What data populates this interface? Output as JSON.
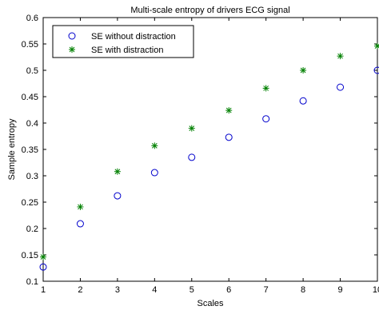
{
  "chart_data": {
    "type": "scatter",
    "title": "Multi-scale entropy of drivers ECG signal",
    "xlabel": "Scales",
    "ylabel": "Sample entropy",
    "xlim": [
      1,
      10
    ],
    "ylim": [
      0.1,
      0.6
    ],
    "x_ticks": [
      "1",
      "2",
      "3",
      "4",
      "5",
      "6",
      "7",
      "8",
      "9",
      "10"
    ],
    "y_ticks": [
      "0.1",
      "0.15",
      "0.2",
      "0.25",
      "0.3",
      "0.35",
      "0.4",
      "0.45",
      "0.5",
      "0.55",
      "0.6"
    ],
    "grid": false,
    "legend_position": "top-left",
    "x": [
      1,
      2,
      3,
      4,
      5,
      6,
      7,
      8,
      9,
      10
    ],
    "series": [
      {
        "name": "SE without distraction",
        "marker": "circle",
        "color": "#0000cc",
        "values": [
          0.127,
          0.209,
          0.262,
          0.306,
          0.335,
          0.373,
          0.408,
          0.442,
          0.468,
          0.5
        ]
      },
      {
        "name": "SE with distraction",
        "marker": "asterisk",
        "color": "#008000",
        "values": [
          0.146,
          0.241,
          0.308,
          0.357,
          0.39,
          0.424,
          0.466,
          0.5,
          0.527,
          0.546
        ]
      }
    ]
  }
}
